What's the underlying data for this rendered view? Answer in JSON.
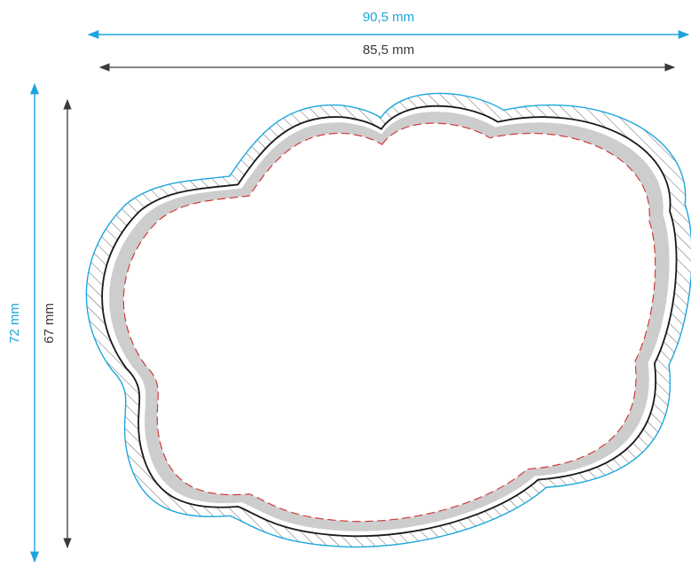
{
  "dimensions": {
    "outer_width": {
      "label": "90,5 mm",
      "color": "#1BA6DC"
    },
    "inner_width": {
      "label": "85,5 mm",
      "color": "#3A3A3A"
    },
    "outer_height": {
      "label": "72 mm",
      "color": "#1BA6DC"
    },
    "inner_height": {
      "label": "67 mm",
      "color": "#3A3A3A"
    }
  },
  "colors": {
    "bleed_outline": "#1BA6DC",
    "cut_line": "#1A1A1A",
    "hatch": "#6E6E6E",
    "safe_band": "#CDCDCD",
    "safe_line": "#D0312D",
    "background": "#FFFFFF"
  }
}
